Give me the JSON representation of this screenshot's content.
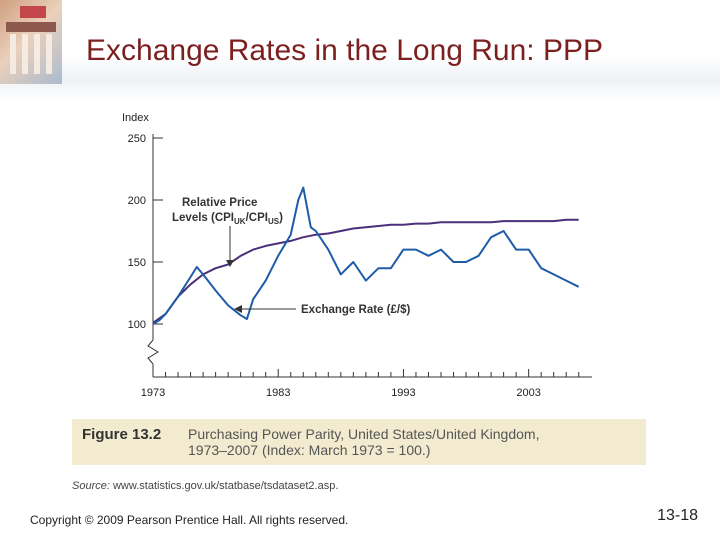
{
  "slide": {
    "title": "Exchange Rates in the Long Run: PPP",
    "figure_label": "Figure 13.2",
    "figure_caption": "Purchasing Power Parity, United States/United Kingdom,\n1973–2007 (Index: March 1973 = 100.)",
    "source_lead": "Source:",
    "source_url": "www.statistics.gov.uk/statbase/tsdataset2.asp.",
    "copyright": "Copyright © 2009 Pearson Prentice Hall. All rights reserved.",
    "slide_number": "13-18"
  },
  "colors": {
    "title": "#7b1f1f",
    "series_relative_price": "#4b2f7a",
    "series_exchange_rate": "#1e5ca8",
    "caption_box": "#f3ebcf"
  },
  "chart_data": {
    "type": "line",
    "ylabel": "Index",
    "ylim": [
      100,
      250
    ],
    "xlim": [
      1973,
      2007.5
    ],
    "yticks": [
      100,
      150,
      200,
      250
    ],
    "xticks": [
      1973,
      1983,
      1993,
      2003
    ],
    "grid": false,
    "annotations": {
      "relative_price": "Relative Price Levels (CPIUK/CPIUS)",
      "relative_price_line1": "Relative Price",
      "relative_price_line2": "Levels (CPI",
      "relative_price_sub1": "UK",
      "relative_price_mid": "/CPI",
      "relative_price_sub2": "US",
      "relative_price_end": ")",
      "exchange_rate": "Exchange Rate (£/$)"
    },
    "series": [
      {
        "name": "Relative Price Levels (CPIUK/CPIUS)",
        "x": [
          1973,
          1974,
          1975,
          1976,
          1977,
          1978,
          1979,
          1980,
          1981,
          1982,
          1983,
          1984,
          1985,
          1986,
          1987,
          1988,
          1989,
          1990,
          1991,
          1992,
          1993,
          1994,
          1995,
          1996,
          1997,
          1998,
          1999,
          2000,
          2001,
          2002,
          2003,
          2004,
          2005,
          2006,
          2007
        ],
        "y": [
          101,
          108,
          122,
          132,
          140,
          145,
          148,
          155,
          160,
          163,
          165,
          167,
          170,
          172,
          173,
          175,
          177,
          178,
          179,
          180,
          180,
          181,
          181,
          182,
          182,
          182,
          182,
          182,
          183,
          183,
          183,
          183,
          183,
          184,
          184
        ]
      },
      {
        "name": "Exchange Rate (£/$)",
        "x": [
          1973,
          1973.5,
          1974,
          1975,
          1976,
          1976.5,
          1977,
          1978,
          1979,
          1980,
          1980.5,
          1981,
          1982,
          1983,
          1984,
          1984.6,
          1985,
          1985.6,
          1986,
          1987,
          1988,
          1989,
          1990,
          1991,
          1992,
          1993,
          1994,
          1995,
          1996,
          1997,
          1998,
          1999,
          2000,
          2001,
          2002,
          2003,
          2004,
          2005,
          2006,
          2007
        ],
        "y": [
          100,
          103,
          108,
          122,
          138,
          146,
          140,
          127,
          115,
          107,
          104,
          120,
          135,
          155,
          172,
          200,
          210,
          178,
          175,
          160,
          140,
          150,
          135,
          145,
          145,
          160,
          160,
          155,
          160,
          150,
          150,
          155,
          170,
          175,
          160,
          160,
          145,
          140,
          135,
          130
        ]
      }
    ]
  }
}
